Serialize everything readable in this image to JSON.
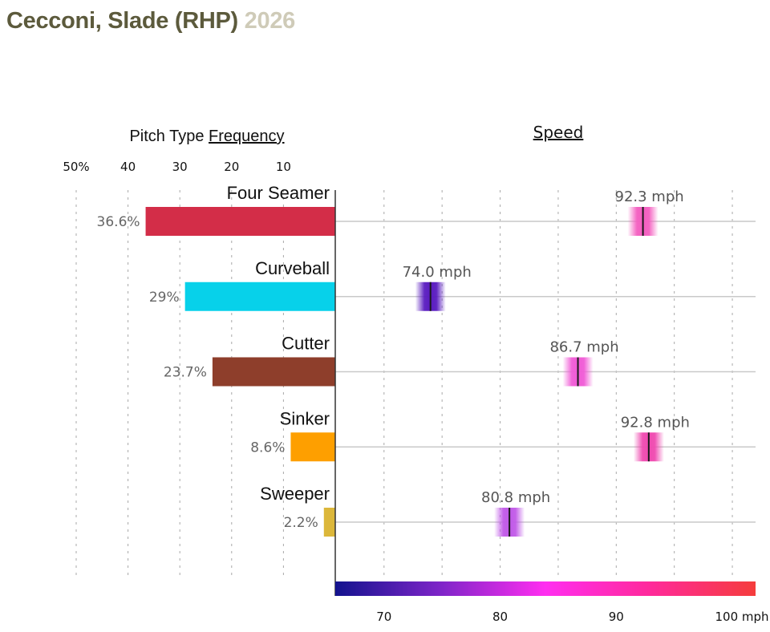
{
  "header": {
    "player": "Cecconi, Slade (RHP)",
    "year": "2026"
  },
  "chart_data": [
    {
      "type": "bar",
      "title_prefix": "Pitch Type ",
      "title_link": "Frequency",
      "orientation": "horizontal-reversed",
      "xlim": [
        0,
        50
      ],
      "x_ticks": [
        {
          "value": 50,
          "label": "50%"
        },
        {
          "value": 40,
          "label": "40"
        },
        {
          "value": 30,
          "label": "30"
        },
        {
          "value": 20,
          "label": "20"
        },
        {
          "value": 10,
          "label": "10"
        }
      ],
      "categories": [
        "Four Seamer",
        "Curveball",
        "Cutter",
        "Sinker",
        "Sweeper"
      ],
      "values": [
        36.6,
        29,
        23.7,
        8.6,
        2.2
      ],
      "value_labels": [
        "36.6%",
        "29%",
        "23.7%",
        "8.6%",
        "2.2%"
      ],
      "colors": [
        "#d32d48",
        "#07d1ea",
        "#8e3e2b",
        "#fe9f00",
        "#dcb73a"
      ]
    },
    {
      "type": "scatter",
      "title": "Speed",
      "xlim": [
        65.8,
        102
      ],
      "x_ticks": [
        {
          "value": 70,
          "label": "70"
        },
        {
          "value": 80,
          "label": "80"
        },
        {
          "value": 90,
          "label": "90"
        },
        {
          "value": 100,
          "label": "100 mph"
        }
      ],
      "minor_grid": [
        75,
        85,
        95
      ],
      "categories": [
        "Four Seamer",
        "Curveball",
        "Cutter",
        "Sinker",
        "Sweeper"
      ],
      "values": [
        92.3,
        74.0,
        86.7,
        92.8,
        80.8
      ],
      "value_labels": [
        "92.3 mph",
        "74.0 mph",
        "86.7 mph",
        "92.8 mph",
        "80.8 mph"
      ],
      "marker_colors": [
        "#f45ec0",
        "#5a1cc0",
        "#f05bd6",
        "#ef4ab0",
        "#c15ae8"
      ],
      "colorscale": [
        "#13138e",
        "#7e25c8",
        "#ff2ef0",
        "#ff2a9a",
        "#f53c3c"
      ]
    }
  ]
}
